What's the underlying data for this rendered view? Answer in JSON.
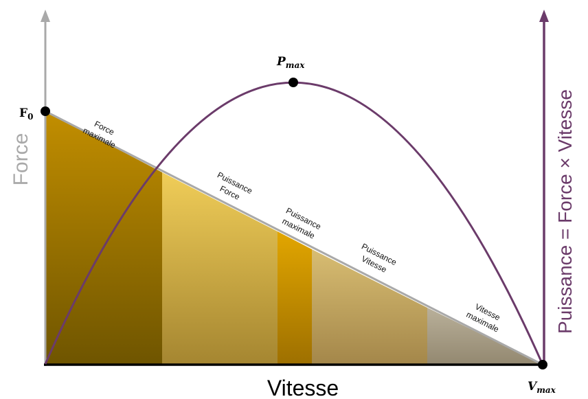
{
  "axes": {
    "force_label": "Force",
    "speed_label": "Vitesse",
    "power_label": "Puissance = Force × Vitesse"
  },
  "points": {
    "f0_main": "F",
    "f0_sub": "0",
    "pmax_main": "P",
    "pmax_sub": "max",
    "vmax_main": "V",
    "vmax_sub": "max"
  },
  "zones": [
    {
      "lines": [
        "Force",
        "maximale"
      ]
    },
    {
      "lines": [
        "Puissance",
        "Force"
      ]
    },
    {
      "lines": [
        "Puissance",
        "maximale"
      ]
    },
    {
      "lines": [
        "Puissance",
        "Vitesse"
      ]
    },
    {
      "lines": [
        "Vitesse",
        "maximale"
      ]
    }
  ],
  "colors": {
    "force_axis": "#a9a9a9",
    "power_axis": "#6b3b6a",
    "speed_axis": "#000000",
    "zone1": "#9a6f00",
    "zone2": "#d8b443",
    "zone3": "#d69e00",
    "zone4": "#c6a860",
    "zone5": "#a8a18b"
  }
}
